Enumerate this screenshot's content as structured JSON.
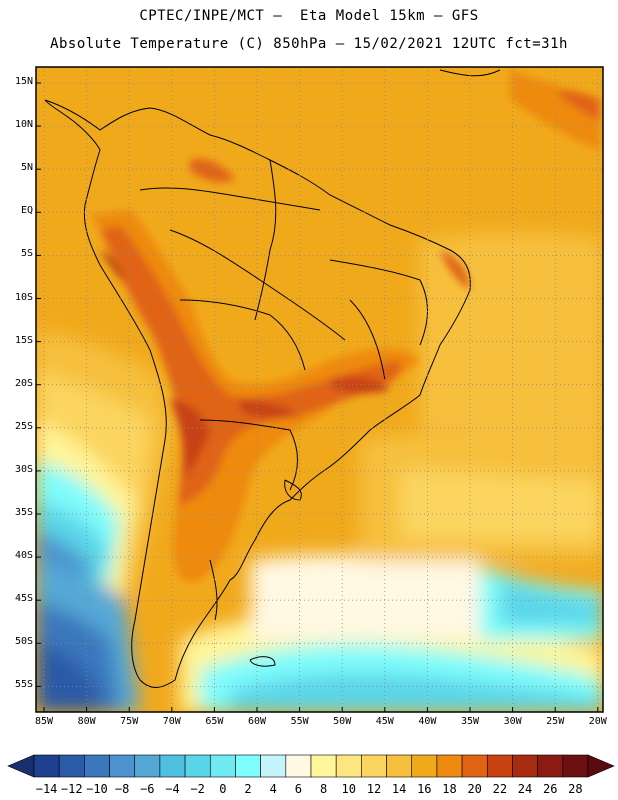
{
  "title_line1": "CPTEC/INPE/MCT –  Eta Model 15km – GFS",
  "title_line2": "Absolute Temperature (C) 850hPa – 15/02/2021 12UTC fct=31h",
  "map": {
    "lat_labels": [
      "15N",
      "10N",
      "5N",
      "EQ",
      "5S",
      "10S",
      "15S",
      "20S",
      "25S",
      "30S",
      "35S",
      "40S",
      "45S",
      "50S",
      "55S"
    ],
    "lon_labels": [
      "85W",
      "80W",
      "75W",
      "70W",
      "65W",
      "60W",
      "55W",
      "50W",
      "45W",
      "40W",
      "35W",
      "30W",
      "25W",
      "20W"
    ],
    "grid": "dotted"
  },
  "colorbar": {
    "labels": [
      "-14",
      "-12",
      "-10",
      "-8",
      "-6",
      "-4",
      "-2",
      "0",
      "2",
      "4",
      "6",
      "8",
      "10",
      "12",
      "14",
      "16",
      "18",
      "20",
      "22",
      "24",
      "26",
      "28"
    ],
    "colors": [
      "#1f3f8f",
      "#2b5aa6",
      "#3a77bd",
      "#4c93cf",
      "#55a8d6",
      "#4fc0e0",
      "#5bd6e8",
      "#70eaf2",
      "#7ffcfc",
      "#c6f4fb",
      "#fff8e2",
      "#fff59a",
      "#fde680",
      "#fbd55f",
      "#f6c03c",
      "#f1a91c",
      "#ee8a10",
      "#e06414",
      "#c84212",
      "#a82c10",
      "#8a1a12",
      "#6a1010"
    ],
    "under_color": "#1b2f6e",
    "over_color": "#5a0a10"
  }
}
